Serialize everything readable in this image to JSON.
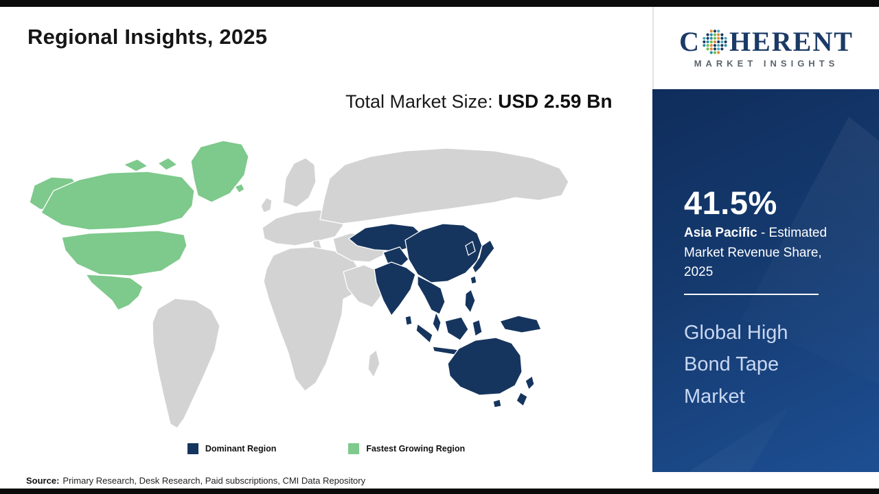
{
  "header": {
    "title": "Regional Insights, 2025"
  },
  "market_size": {
    "label": "Total Market Size:",
    "value": "USD 2.59 Bn"
  },
  "legend": {
    "items": [
      {
        "label": "Dominant Region",
        "color": "#16355e"
      },
      {
        "label": "Fastest Growing Region",
        "color": "#7ec98c"
      }
    ]
  },
  "source": {
    "label": "Source:",
    "text": "Primary Research, Desk Research, Paid subscriptions, CMI Data Repository"
  },
  "logo": {
    "prefix": "C",
    "suffix": "HERENT",
    "full_name": "COHERENT",
    "tagline": "MARKET INSIGHTS",
    "globe_colors": [
      "#1b3a66",
      "#2a8fa5",
      "#6cbf4e",
      "#e08a3c",
      "#163a5f",
      "#49a7b8"
    ]
  },
  "sidebar": {
    "share_value": "41.5%",
    "share_region": "Asia Pacific",
    "share_desc": "- Estimated Market Revenue Share, 2025",
    "market_name": "Global High Bond Tape Market"
  },
  "colors": {
    "dominant": "#16355e",
    "fastest": "#7ec98c",
    "land": "#d3d3d3",
    "panel_top": "#0f2d5c",
    "panel_bottom": "#1d4f93",
    "accent_text": "#c9d7f2"
  },
  "chart_data": {
    "type": "choropleth",
    "title": "Regional Insights, 2025",
    "market": "Global High Bond Tape Market",
    "total_market_size": "USD 2.59 Bn",
    "regions": [
      {
        "name": "Asia Pacific",
        "status": "Dominant Region",
        "share_percent": 41.5,
        "color": "#16355e"
      },
      {
        "name": "North America",
        "status": "Fastest Growing Region",
        "color": "#7ec98c"
      },
      {
        "name": "Rest of World",
        "status": "Other",
        "color": "#d3d3d3"
      }
    ],
    "legend_position": "bottom",
    "annotations": [
      "Total Market Size: USD 2.59 Bn",
      "41.5% Asia Pacific - Estimated Market Revenue Share, 2025"
    ]
  }
}
